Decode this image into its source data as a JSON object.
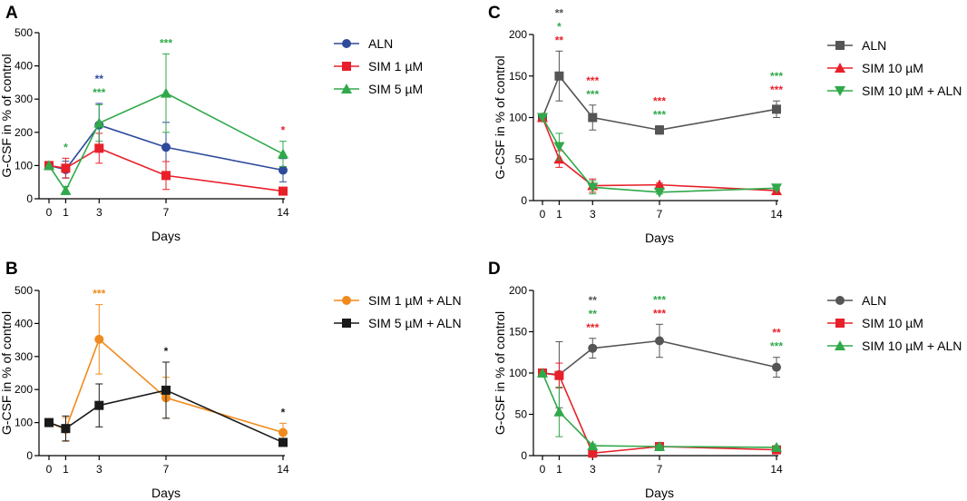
{
  "chart_data": [
    {
      "type": "line",
      "panel_label": "A",
      "xlabel": "Days",
      "ylabel": "G-CSF in % of control",
      "x": [
        0,
        1,
        3,
        7,
        14
      ],
      "x_ticks": [
        0,
        1,
        3,
        7,
        14
      ],
      "y_ticks": [
        0,
        100,
        200,
        300,
        400,
        500
      ],
      "ylim": [
        0,
        500
      ],
      "series": [
        {
          "name": "ALN",
          "color": "#2e4a9b",
          "marker": "circle",
          "values": [
            100,
            88,
            222,
            155,
            86
          ],
          "errors": [
            0,
            25,
            65,
            75,
            35
          ]
        },
        {
          "name": "SIM 1 µM",
          "color": "#e8202a",
          "marker": "square",
          "values": [
            100,
            92,
            152,
            70,
            23
          ],
          "errors": [
            0,
            30,
            45,
            42,
            10
          ]
        },
        {
          "name": "SIM 5 µM",
          "color": "#30a94a",
          "marker": "triangle-up",
          "values": [
            100,
            25,
            228,
            318,
            135
          ],
          "errors": [
            0,
            12,
            55,
            118,
            38
          ]
        }
      ],
      "annotations": [
        {
          "x": 1,
          "rows": [
            {
              "text": "*",
              "color": "#30a94a"
            }
          ]
        },
        {
          "x": 3,
          "rows": [
            {
              "text": "**",
              "color": "#2e4a9b"
            },
            {
              "text": "***",
              "color": "#30a94a"
            }
          ]
        },
        {
          "x": 7,
          "rows": [
            {
              "text": "***",
              "color": "#30a94a"
            }
          ]
        },
        {
          "x": 14,
          "rows": [
            {
              "text": "*",
              "color": "#e8202a"
            }
          ]
        }
      ]
    },
    {
      "type": "line",
      "panel_label": "B",
      "xlabel": "Days",
      "ylabel": "G-CSF in % of control",
      "x": [
        0,
        1,
        3,
        7,
        14
      ],
      "x_ticks": [
        0,
        1,
        3,
        7,
        14
      ],
      "y_ticks": [
        0,
        100,
        200,
        300,
        400,
        500
      ],
      "ylim": [
        0,
        500
      ],
      "series": [
        {
          "name": "SIM 1 µM + ALN",
          "color": "#f08a1c",
          "marker": "circle",
          "values": [
            100,
            80,
            352,
            175,
            70
          ],
          "errors": [
            0,
            35,
            105,
            62,
            28
          ]
        },
        {
          "name": "SIM 5 µM + ALN",
          "color": "#1a1a1a",
          "marker": "square",
          "values": [
            100,
            82,
            152,
            198,
            40
          ],
          "errors": [
            0,
            38,
            65,
            85,
            10
          ]
        }
      ],
      "annotations": [
        {
          "x": 3,
          "rows": [
            {
              "text": "***",
              "color": "#f08a1c"
            }
          ]
        },
        {
          "x": 7,
          "rows": [
            {
              "text": "*",
              "color": "#1a1a1a"
            }
          ]
        },
        {
          "x": 14,
          "rows": [
            {
              "text": "*",
              "color": "#1a1a1a"
            }
          ]
        }
      ]
    },
    {
      "type": "line",
      "panel_label": "C",
      "xlabel": "Days",
      "ylabel": "G-CSF in % of control",
      "x": [
        0,
        1,
        3,
        7,
        14
      ],
      "x_ticks": [
        0,
        1,
        3,
        7,
        14
      ],
      "y_ticks": [
        0,
        50,
        100,
        150,
        200
      ],
      "ylim": [
        0,
        200
      ],
      "series": [
        {
          "name": "ALN",
          "color": "#555555",
          "marker": "square",
          "values": [
            100,
            150,
            100,
            85,
            110
          ],
          "errors": [
            0,
            30,
            15,
            5,
            10
          ]
        },
        {
          "name": "SIM 10 µM",
          "color": "#e8202a",
          "marker": "triangle-up",
          "values": [
            100,
            50,
            18,
            19,
            12
          ],
          "errors": [
            0,
            10,
            8,
            2,
            2
          ]
        },
        {
          "name": "SIM 10 µM + ALN",
          "color": "#30a94a",
          "marker": "triangle-down",
          "values": [
            100,
            65,
            16,
            10,
            15
          ],
          "errors": [
            0,
            16,
            8,
            2,
            2
          ]
        }
      ],
      "annotations": [
        {
          "x": 1,
          "rows": [
            {
              "text": "**",
              "color": "#555555"
            },
            {
              "text": "*",
              "color": "#30a94a"
            },
            {
              "text": "**",
              "color": "#e8202a"
            }
          ]
        },
        {
          "x": 3,
          "rows": [
            {
              "text": "***",
              "color": "#e8202a"
            },
            {
              "text": "***",
              "color": "#30a94a"
            }
          ]
        },
        {
          "x": 7,
          "rows": [
            {
              "text": "***",
              "color": "#e8202a"
            },
            {
              "text": "***",
              "color": "#30a94a"
            }
          ]
        },
        {
          "x": 14,
          "rows": [
            {
              "text": "***",
              "color": "#30a94a"
            },
            {
              "text": "***",
              "color": "#e8202a"
            }
          ]
        }
      ]
    },
    {
      "type": "line",
      "panel_label": "D",
      "xlabel": "Days",
      "ylabel": "G-CSF in % of control",
      "x": [
        0,
        1,
        3,
        7,
        14
      ],
      "x_ticks": [
        0,
        1,
        3,
        7,
        14
      ],
      "y_ticks": [
        0,
        50,
        100,
        150,
        200
      ],
      "ylim": [
        0,
        200
      ],
      "series": [
        {
          "name": "ALN",
          "color": "#555555",
          "marker": "circle",
          "values": [
            100,
            98,
            130,
            139,
            107
          ],
          "errors": [
            0,
            40,
            12,
            20,
            12
          ]
        },
        {
          "name": "SIM 10 µM",
          "color": "#e8202a",
          "marker": "square",
          "values": [
            100,
            97,
            3,
            11,
            7
          ],
          "errors": [
            0,
            15,
            3,
            2,
            3
          ]
        },
        {
          "name": "SIM 10 µM + ALN",
          "color": "#30a94a",
          "marker": "triangle-up",
          "values": [
            100,
            53,
            12,
            11,
            10
          ],
          "errors": [
            0,
            30,
            2,
            2,
            2
          ]
        }
      ],
      "annotations": [
        {
          "x": 3,
          "rows": [
            {
              "text": "**",
              "color": "#555555"
            },
            {
              "text": "**",
              "color": "#30a94a"
            },
            {
              "text": "***",
              "color": "#e8202a"
            }
          ]
        },
        {
          "x": 7,
          "rows": [
            {
              "text": "***",
              "color": "#30a94a"
            },
            {
              "text": "***",
              "color": "#e8202a"
            }
          ]
        },
        {
          "x": 14,
          "rows": [
            {
              "text": "**",
              "color": "#e8202a"
            },
            {
              "text": "***",
              "color": "#30a94a"
            }
          ]
        }
      ]
    }
  ]
}
